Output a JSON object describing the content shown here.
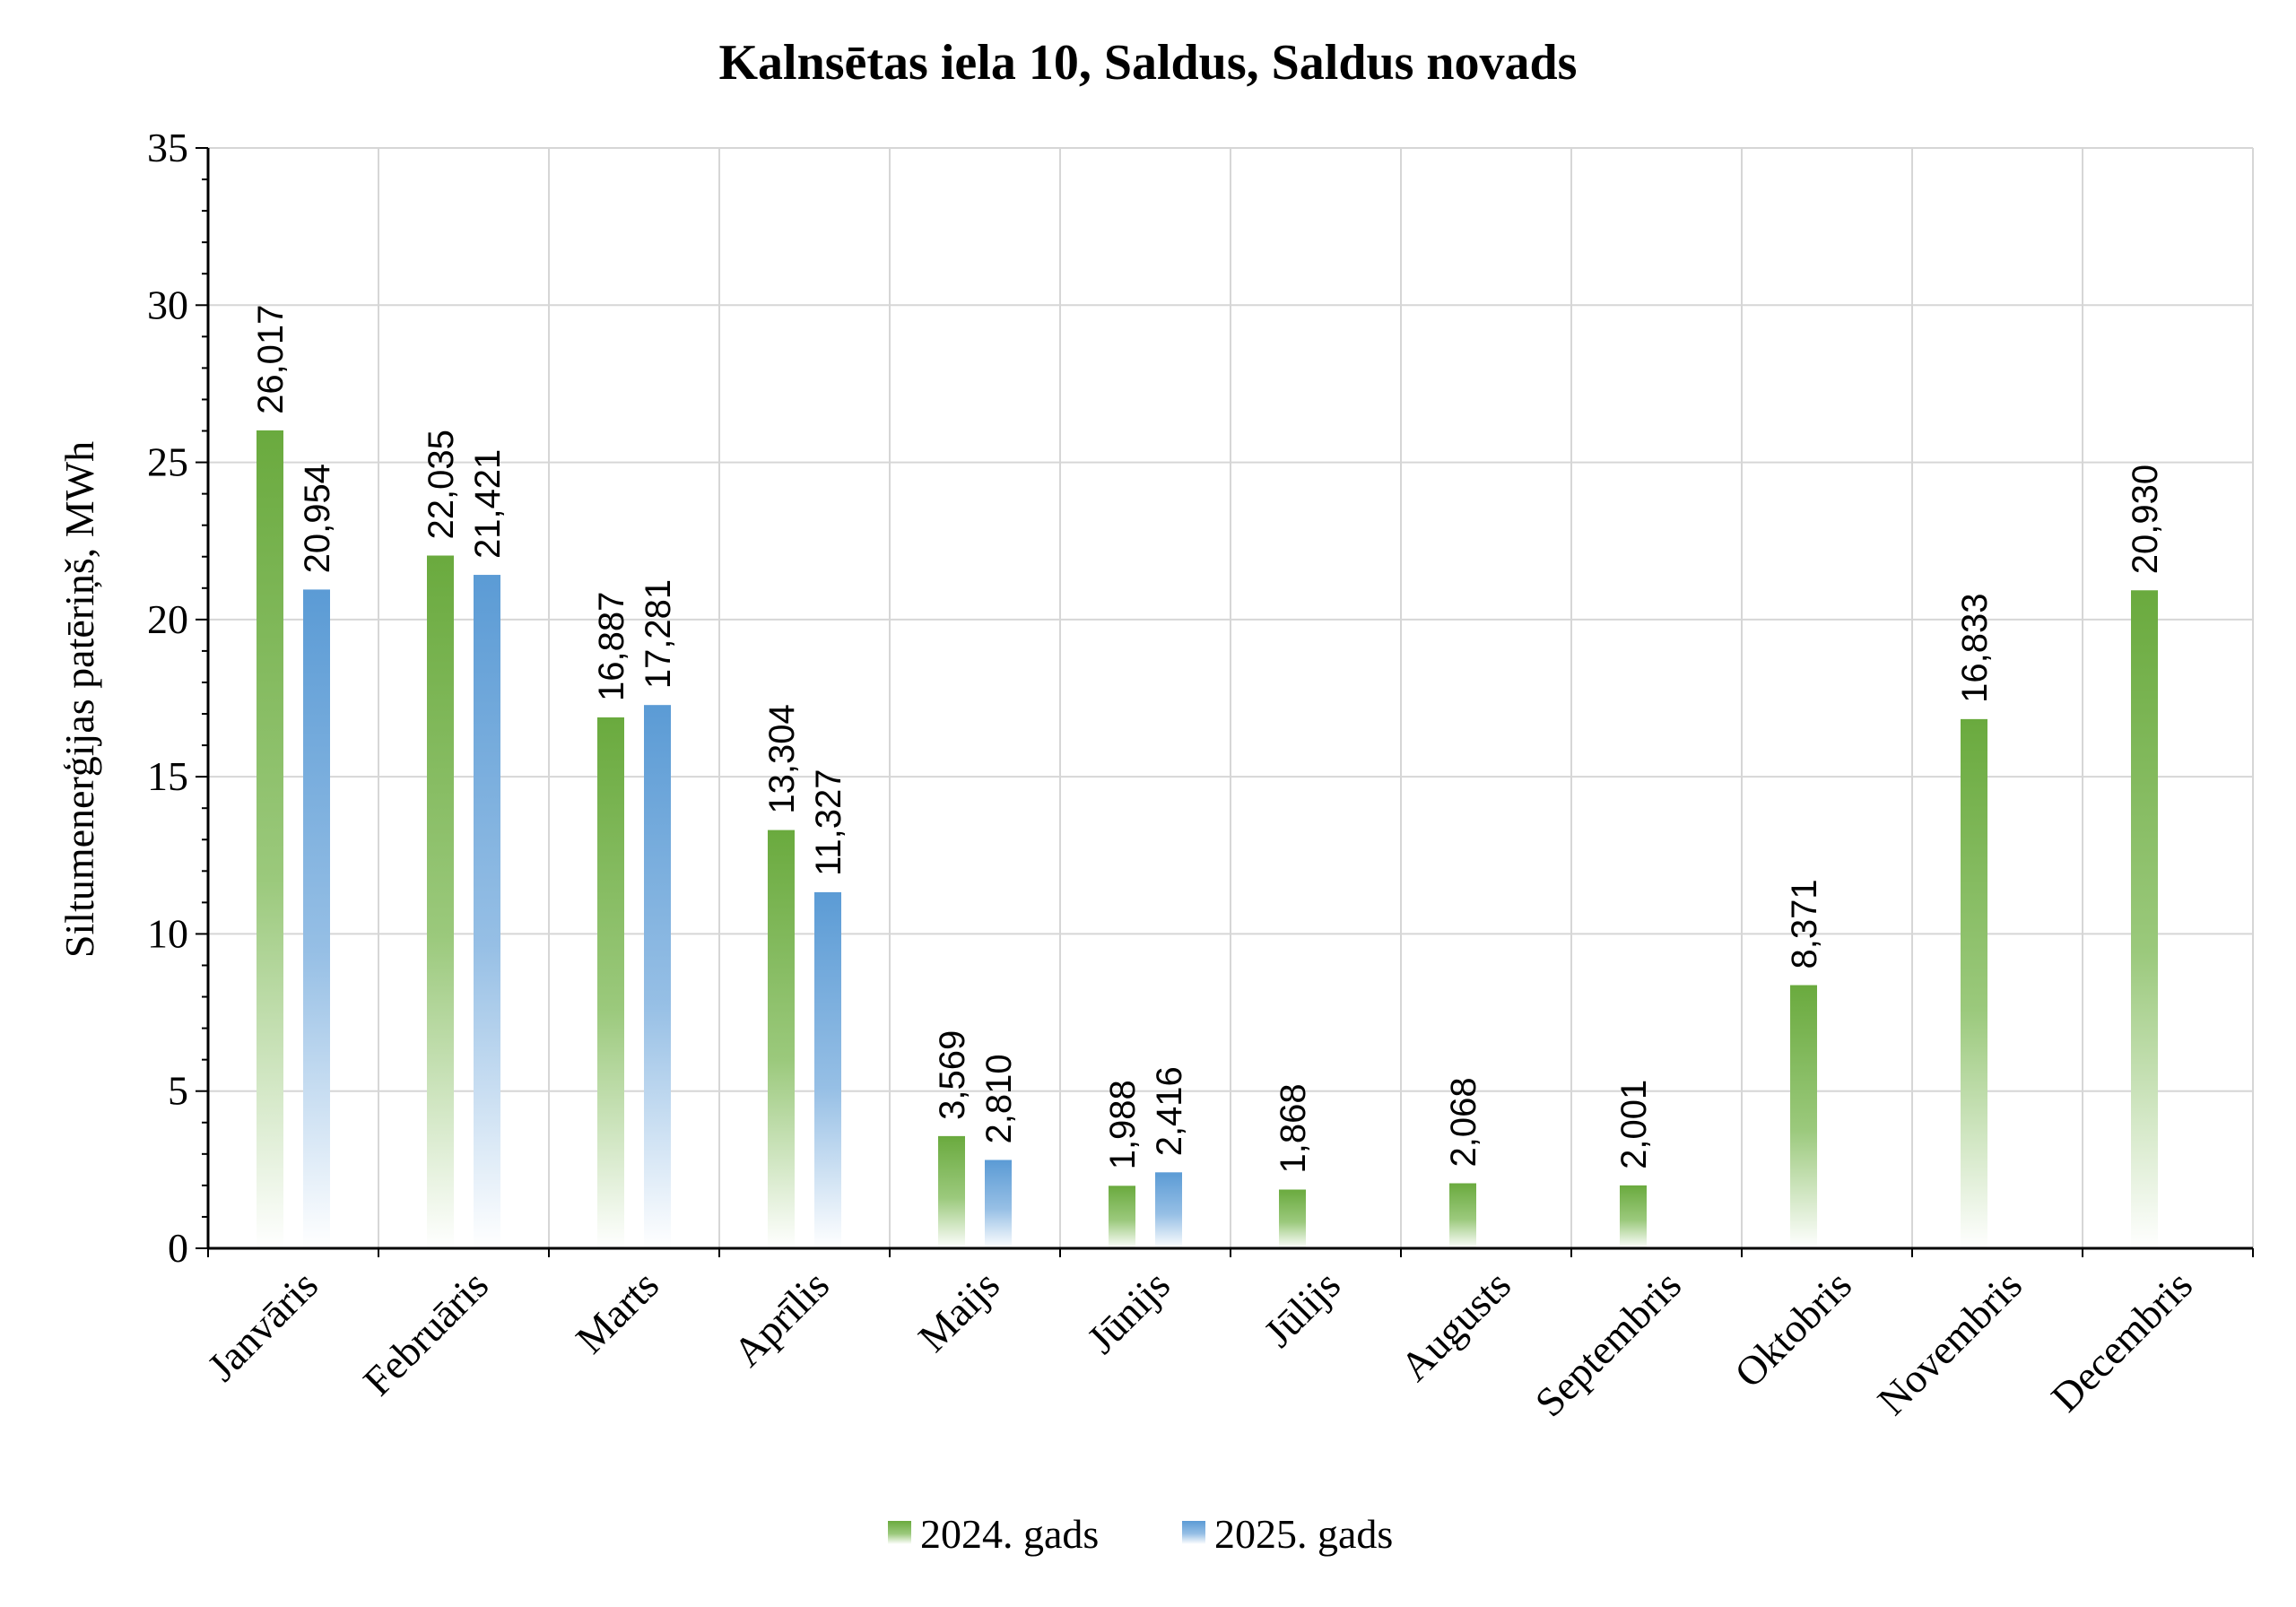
{
  "chart_data": {
    "type": "bar",
    "title": "Kalnsētas iela 10, Saldus, Saldus novads",
    "ylabel": "Siltumenerģijas patēriņš, MWh",
    "xlabel": "",
    "ylim": [
      0,
      35
    ],
    "yticks": [
      "0",
      "5",
      "10",
      "15",
      "20",
      "25",
      "30",
      "35"
    ],
    "categories": [
      "Janvāris",
      "Februāris",
      "Marts",
      "Aprīlis",
      "Maijs",
      "Jūnijs",
      "Jūlijs",
      "Augusts",
      "Septembris",
      "Oktobris",
      "Novembris",
      "Decembris"
    ],
    "series": [
      {
        "name": "2024. gads",
        "color": "#70ad47",
        "values": [
          26.017,
          22.035,
          16.887,
          13.304,
          3.569,
          1.988,
          1.868,
          2.068,
          2.001,
          8.371,
          16.833,
          20.93
        ],
        "labels": [
          "26,017",
          "22,035",
          "16,887",
          "13,304",
          "3,569",
          "1,988",
          "1,868",
          "2,068",
          "2,001",
          "8,371",
          "16,833",
          "20,930"
        ]
      },
      {
        "name": "2025. gads",
        "color": "#5b9bd5",
        "values": [
          20.954,
          21.421,
          17.281,
          11.327,
          2.81,
          2.416,
          null,
          null,
          null,
          null,
          null,
          null
        ],
        "labels": [
          "20,954",
          "21,421",
          "17,281",
          "11,327",
          "2,810",
          "2,416",
          null,
          null,
          null,
          null,
          null,
          null
        ]
      }
    ],
    "grid": true,
    "legend_position": "bottom"
  }
}
